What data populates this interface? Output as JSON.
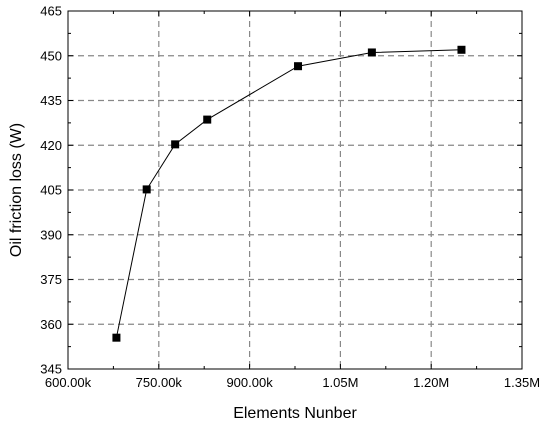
{
  "chart_data": {
    "type": "line",
    "xlabel": "Elements Nunber",
    "ylabel": "Oil friction loss (W)",
    "xlim": [
      600000,
      1350000
    ],
    "ylim": [
      345,
      465
    ],
    "x_ticks": [
      {
        "value": 600000,
        "label": "600.00k"
      },
      {
        "value": 750000,
        "label": "750.00k"
      },
      {
        "value": 900000,
        "label": "900.00k"
      },
      {
        "value": 1050000,
        "label": "1.05M"
      },
      {
        "value": 1200000,
        "label": "1.20M"
      },
      {
        "value": 1350000,
        "label": "1.35M"
      }
    ],
    "y_ticks": [
      {
        "value": 345,
        "label": "345"
      },
      {
        "value": 360,
        "label": "360"
      },
      {
        "value": 375,
        "label": "375"
      },
      {
        "value": 390,
        "label": "390"
      },
      {
        "value": 405,
        "label": "405"
      },
      {
        "value": 420,
        "label": "420"
      },
      {
        "value": 435,
        "label": "435"
      },
      {
        "value": 450,
        "label": "450"
      },
      {
        "value": 465,
        "label": "465"
      }
    ],
    "grid": true,
    "marker": "square",
    "line_color": "#000000",
    "grid_color": "#888888",
    "series": [
      {
        "x": [
          680000,
          730000,
          777000,
          830000,
          980000,
          1102000,
          1250000
        ],
        "y": [
          355.5,
          405.2,
          420.3,
          428.6,
          446.5,
          451.1,
          452.0
        ]
      }
    ]
  }
}
